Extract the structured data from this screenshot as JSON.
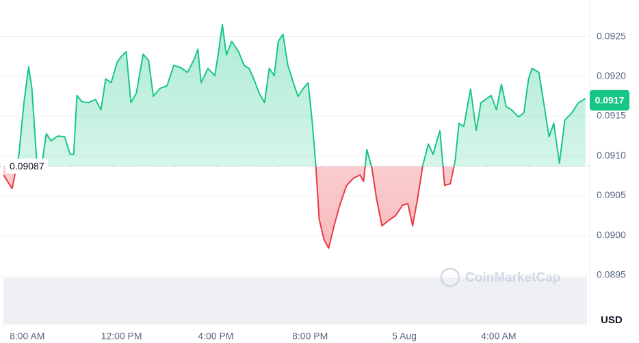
{
  "chart_data": {
    "type": "line",
    "x": [
      6.99,
      7.36,
      7.65,
      7.86,
      8.06,
      8.2,
      8.43,
      8.64,
      8.81,
      9.01,
      9.3,
      9.59,
      9.82,
      9.97,
      10.11,
      10.32,
      10.6,
      10.89,
      11.13,
      11.33,
      11.56,
      11.82,
      11.99,
      12.2,
      12.4,
      12.63,
      12.92,
      13.15,
      13.35,
      13.64,
      13.93,
      14.22,
      14.51,
      14.8,
      15.09,
      15.24,
      15.38,
      15.67,
      15.96,
      16.1,
      16.28,
      16.45,
      16.68,
      16.97,
      17.2,
      17.41,
      17.61,
      17.84,
      18.07,
      18.27,
      18.48,
      18.65,
      18.85,
      19.06,
      19.29,
      19.49,
      19.72,
      19.92,
      20.1,
      20.24,
      20.39,
      20.59,
      20.79,
      21.02,
      21.26,
      21.55,
      21.84,
      22.12,
      22.27,
      22.41,
      22.62,
      22.82,
      23.05,
      23.34,
      23.63,
      23.92,
      24.15,
      24.35,
      24.56,
      24.79,
      25.02,
      25.22,
      25.51,
      25.71,
      25.95,
      26.15,
      26.32,
      26.52,
      26.81,
      27.05,
      27.25,
      27.45,
      27.68,
      27.91,
      28.12,
      28.32,
      28.55,
      28.84,
      29.07,
      29.27,
      29.42,
      29.71,
      29.94,
      30.14,
      30.34,
      30.58,
      30.81,
      31.1,
      31.39,
      31.68
    ],
    "values": [
      0.09076,
      0.09059,
      0.09102,
      0.09167,
      0.09212,
      0.09184,
      0.09081,
      0.09093,
      0.09128,
      0.09119,
      0.09125,
      0.09124,
      0.09102,
      0.09102,
      0.09176,
      0.09168,
      0.09167,
      0.09171,
      0.09158,
      0.09197,
      0.09192,
      0.09218,
      0.09225,
      0.09231,
      0.09167,
      0.09179,
      0.09228,
      0.0922,
      0.09175,
      0.09185,
      0.09188,
      0.09214,
      0.09211,
      0.09205,
      0.09222,
      0.09234,
      0.09192,
      0.0921,
      0.09201,
      0.09227,
      0.09265,
      0.09227,
      0.09244,
      0.09231,
      0.09214,
      0.0921,
      0.09197,
      0.09179,
      0.09167,
      0.0921,
      0.09201,
      0.09244,
      0.09253,
      0.09214,
      0.09192,
      0.09175,
      0.09185,
      0.09192,
      0.09141,
      0.09089,
      0.0902,
      0.08995,
      0.08984,
      0.09012,
      0.09038,
      0.09063,
      0.09072,
      0.09076,
      0.09068,
      0.09108,
      0.09085,
      0.09046,
      0.09012,
      0.09019,
      0.09025,
      0.09038,
      0.0904,
      0.09012,
      0.09046,
      0.09089,
      0.09115,
      0.09102,
      0.09132,
      0.09063,
      0.09065,
      0.09093,
      0.09141,
      0.09137,
      0.09184,
      0.09132,
      0.09167,
      0.09171,
      0.09176,
      0.09158,
      0.0919,
      0.09162,
      0.09158,
      0.09149,
      0.09154,
      0.09197,
      0.0921,
      0.09205,
      0.09162,
      0.09124,
      0.09141,
      0.09091,
      0.09145,
      0.09154,
      0.09167,
      0.09172
    ],
    "color_up": "#16c784",
    "color_down": "#ea3943",
    "reference_value": 0.09087,
    "last_value": 0.0917,
    "xlim": [
      6.99,
      31.75
    ],
    "xticks": [
      {
        "value": 8,
        "label": "8:00 AM"
      },
      {
        "value": 12,
        "label": "12:00 PM"
      },
      {
        "value": 16,
        "label": "4:00 PM"
      },
      {
        "value": 20,
        "label": "8:00 PM"
      },
      {
        "value": 24,
        "label": "5 Aug"
      },
      {
        "value": 28,
        "label": "4:00 AM"
      }
    ],
    "ylim": [
      0.08888,
      0.09296
    ],
    "yticks": [
      0.0895,
      {
        "value": 0.09,
        "label": "0.0900"
      },
      0.0905,
      {
        "value": 0.091,
        "label": "0.0910"
      },
      0.0915,
      {
        "value": 0.092,
        "label": "0.0920"
      },
      0.0925
    ],
    "grid": true,
    "unit": "USD",
    "watermark": "CoinMarketCap"
  }
}
